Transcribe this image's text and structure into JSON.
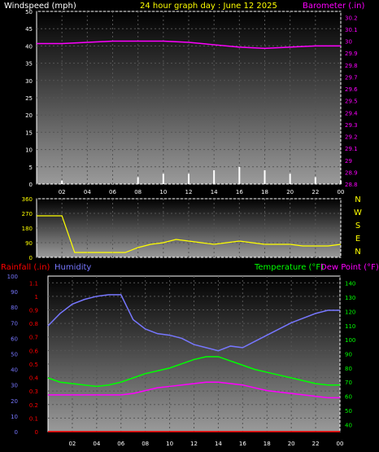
{
  "header": {
    "left": "Windspeed (mph)",
    "center": "24 hour graph day : June 12 2025",
    "right": "Barometer (.in)"
  },
  "colors": {
    "white": "#ffffff",
    "yellow": "#ffff00",
    "magenta": "#ff00ff",
    "green": "#00ff00",
    "red": "#ff0000",
    "blue": "#7777ff",
    "bg": "#000000"
  },
  "x_ticks": [
    "02",
    "04",
    "06",
    "08",
    "10",
    "12",
    "14",
    "16",
    "18",
    "20",
    "22",
    "00"
  ],
  "chart_data": [
    {
      "type": "line",
      "name": "wind-barometer",
      "x_range_hours": [
        0,
        24
      ],
      "left_axis": {
        "label": "Windspeed (mph)",
        "ticks": [
          "0",
          "5",
          "10",
          "15",
          "20",
          "25",
          "30",
          "35",
          "40",
          "45",
          "50"
        ],
        "ylim": [
          0,
          50
        ]
      },
      "right_axis": {
        "label": "Barometer (.in)",
        "ticks": [
          "28.8",
          "28.9",
          "29",
          "29.1",
          "29.2",
          "29.3",
          "29.4",
          "29.5",
          "29.6",
          "29.7",
          "29.8",
          "29.9",
          "30",
          "30.1",
          "30.2"
        ],
        "ylim": [
          28.8,
          30.25
        ]
      },
      "series": [
        {
          "name": "Barometer (.in)",
          "color": "#ff00ff",
          "x": [
            0,
            2,
            4,
            6,
            8,
            10,
            12,
            14,
            16,
            18,
            20,
            22,
            24
          ],
          "y": [
            29.98,
            29.98,
            29.99,
            30.0,
            30.0,
            30.0,
            29.99,
            29.97,
            29.95,
            29.94,
            29.95,
            29.96,
            29.96
          ]
        },
        {
          "name": "Windspeed",
          "color": "#ffffff",
          "x": [
            0,
            2,
            4,
            6,
            8,
            10,
            12,
            14,
            16,
            18,
            20,
            22,
            24
          ],
          "y": [
            0,
            1,
            0,
            0,
            2,
            3,
            3,
            4,
            5,
            4,
            3,
            2,
            1
          ]
        }
      ]
    },
    {
      "type": "scatter",
      "name": "wind-direction",
      "y_ticks": [
        "360",
        "270",
        "180",
        "90",
        "0"
      ],
      "ylim": [
        0,
        360
      ],
      "compass": [
        "N",
        "W",
        "S",
        "E",
        "N"
      ],
      "series": [
        {
          "name": "Wind direction",
          "color": "#ffff00",
          "x": [
            0,
            1,
            2,
            3,
            4,
            5,
            6,
            7,
            8,
            9,
            10,
            11,
            12,
            13,
            14,
            15,
            16,
            17,
            18,
            19,
            20,
            21,
            22,
            23,
            24
          ],
          "y": [
            255,
            255,
            255,
            30,
            30,
            30,
            30,
            30,
            60,
            80,
            90,
            110,
            100,
            90,
            80,
            90,
            100,
            90,
            80,
            80,
            80,
            70,
            70,
            70,
            80
          ]
        }
      ]
    },
    {
      "type": "line",
      "name": "rain-humidity-temperature",
      "top_labels": {
        "rainfall": "Rainfall (.in)",
        "humidity": "Humidity",
        "temperature": "Temperature (°F)",
        "dewpoint": "Dew Point (°F)"
      },
      "humidity_axis": {
        "ticks": [
          "0",
          "10",
          "20",
          "30",
          "40",
          "50",
          "60",
          "70",
          "80",
          "90",
          "100"
        ],
        "ylim": [
          0,
          100
        ]
      },
      "rain_axis": {
        "ticks": [
          "0",
          "0.1",
          "0.2",
          "0.3",
          "0.4",
          "0.5",
          "0.6",
          "0.7",
          "0.8",
          "0.9",
          "1",
          "1.1"
        ],
        "ylim": [
          0,
          1.15
        ]
      },
      "temp_axis": {
        "ticks": [
          "40",
          "50",
          "60",
          "70",
          "80",
          "90",
          "100",
          "110",
          "120",
          "130",
          "140"
        ],
        "ylim": [
          35,
          145
        ]
      },
      "series": [
        {
          "name": "Humidity",
          "color": "#7777ff",
          "x": [
            0,
            1,
            2,
            3,
            4,
            5,
            6,
            7,
            8,
            9,
            10,
            11,
            12,
            13,
            14,
            15,
            16,
            17,
            18,
            19,
            20,
            21,
            22,
            23,
            24
          ],
          "y": [
            68,
            76,
            82,
            85,
            87,
            88,
            88,
            72,
            66,
            63,
            62,
            60,
            56,
            54,
            52,
            55,
            54,
            58,
            62,
            66,
            70,
            73,
            76,
            78,
            78
          ]
        },
        {
          "name": "Temperature (°F)",
          "color": "#00ff00",
          "x": [
            0,
            1,
            2,
            3,
            4,
            5,
            6,
            7,
            8,
            9,
            10,
            11,
            12,
            13,
            14,
            15,
            16,
            17,
            18,
            19,
            20,
            21,
            22,
            23,
            24
          ],
          "y": [
            73,
            70,
            69,
            68,
            67,
            68,
            70,
            73,
            76,
            78,
            80,
            83,
            86,
            88,
            88,
            85,
            82,
            79,
            77,
            75,
            73,
            71,
            69,
            68,
            68
          ]
        },
        {
          "name": "Dew Point (°F)",
          "color": "#ff00ff",
          "x": [
            0,
            1,
            2,
            3,
            4,
            5,
            6,
            7,
            8,
            9,
            10,
            11,
            12,
            13,
            14,
            15,
            16,
            17,
            18,
            19,
            20,
            21,
            22,
            23,
            24
          ],
          "y": [
            61,
            61,
            61,
            61,
            61,
            61,
            61,
            62,
            64,
            66,
            67,
            68,
            69,
            70,
            70,
            69,
            68,
            66,
            64,
            63,
            62,
            61,
            60,
            59,
            59
          ]
        },
        {
          "name": "Rainfall (.in)",
          "color": "#ff0000",
          "x": [
            0,
            6,
            12,
            18,
            24
          ],
          "y": [
            0,
            0,
            0,
            0,
            0
          ]
        }
      ]
    }
  ]
}
